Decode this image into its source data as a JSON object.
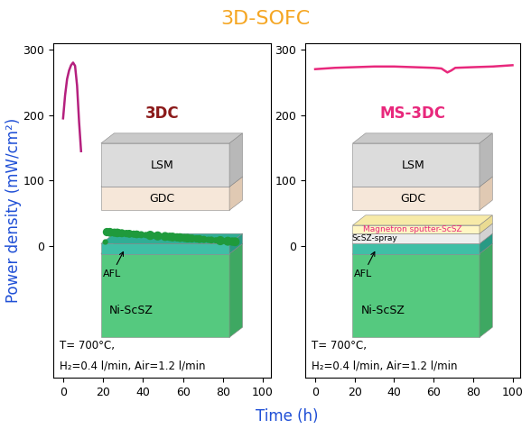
{
  "figure": {
    "title": "3D-SOFC",
    "x_label": "Time (h)",
    "y_label": "Power density (mW/cm²)"
  },
  "chart_data": [
    {
      "type": "line",
      "title": "3DC",
      "x": [
        0,
        1,
        2,
        3,
        4,
        5,
        6,
        7,
        8,
        9
      ],
      "values": [
        195,
        230,
        255,
        268,
        276,
        280,
        275,
        245,
        190,
        145
      ],
      "color": "#b5207e",
      "xlim": [
        -5,
        104
      ],
      "ylim": [
        -200,
        310
      ],
      "xticks": [
        0,
        20,
        40,
        60,
        80,
        100
      ],
      "yticks": [
        0,
        100,
        200,
        300
      ],
      "layers": [
        "LSM",
        "GDC",
        "AFL",
        "Ni-ScSZ"
      ],
      "annotations": [
        "T= 700°C,",
        "H₂=0.4 l/min, Air=1.2 l/min"
      ]
    },
    {
      "type": "line",
      "title": "MS-3DC",
      "x": [
        0,
        10,
        20,
        30,
        40,
        50,
        60,
        64,
        67,
        69,
        71,
        80,
        90,
        100
      ],
      "values": [
        270,
        272,
        273,
        274,
        274,
        273,
        272,
        271,
        265,
        268,
        272,
        273,
        274,
        276
      ],
      "color": "#e8287c",
      "xlim": [
        -5,
        104
      ],
      "ylim": [
        -200,
        310
      ],
      "xticks": [
        0,
        20,
        40,
        60,
        80,
        100
      ],
      "yticks": [
        0,
        100,
        200,
        300
      ],
      "layers": [
        "LSM",
        "GDC",
        "Magnetron sputter-ScSZ",
        "ScSZ-spray",
        "AFL",
        "Ni-ScSZ"
      ],
      "annotations": [
        "T= 700°C,",
        "H₂=0.4 l/min, Air=1.2 l/min"
      ]
    }
  ]
}
